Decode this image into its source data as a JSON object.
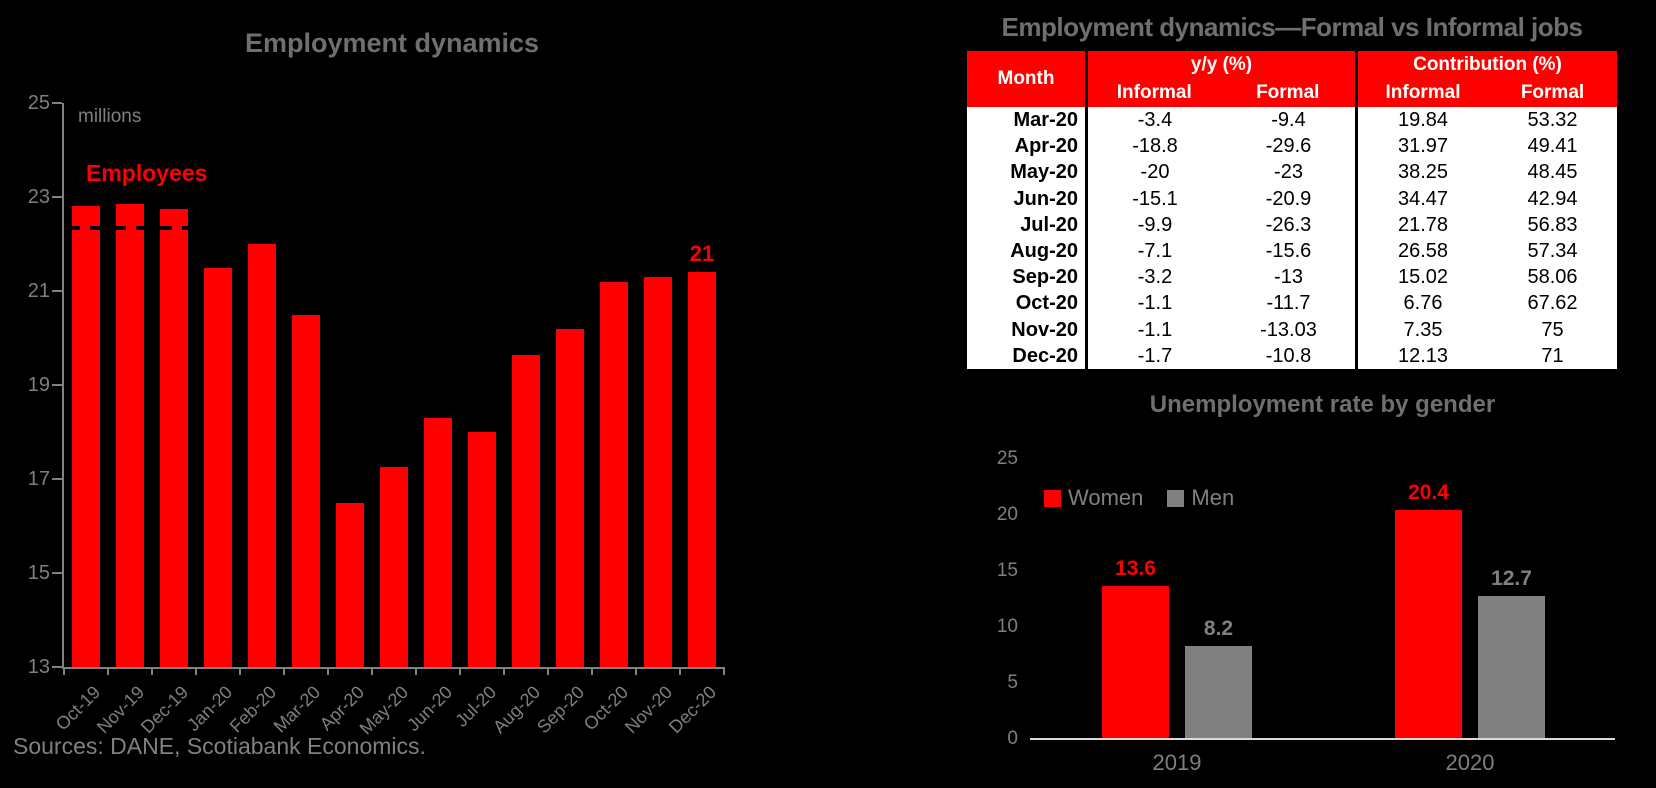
{
  "sources_note": "Sources: DANE, Scotiabank Economics.",
  "colors": {
    "accent_red": "#ff0000",
    "men_gray": "#808080",
    "title_gray": "#6f6f6f",
    "label_gray": "#7f7f7f",
    "axis_gray": "#808080",
    "light_axis": "#d9d9d9",
    "table_header_bg": "#ff0000",
    "table_body_bg": "#ffffff"
  },
  "chart_data": [
    {
      "id": "employment-dynamics",
      "type": "bar",
      "title": "Employment dynamics",
      "ylabel": "millions",
      "series_label": "Employees",
      "categories": [
        "Oct-19",
        "Nov-19",
        "Dec-19",
        "Jan-20",
        "Feb-20",
        "Mar-20",
        "Apr-20",
        "May-20",
        "Jun-20",
        "Jul-20",
        "Aug-20",
        "Sep-20",
        "Oct-20",
        "Nov-20",
        "Dec-20"
      ],
      "values": [
        22.8,
        22.85,
        22.75,
        21.5,
        22.0,
        20.5,
        16.5,
        17.25,
        18.3,
        18.0,
        19.65,
        20.2,
        21.2,
        21.3,
        21.4
      ],
      "bar_color": "#ff0000",
      "ylim": [
        13,
        25
      ],
      "y_ticks": [
        25,
        23,
        21,
        19,
        17,
        15,
        13
      ],
      "grid": false,
      "legend_position": "none",
      "reference_line": {
        "value": 22.33,
        "style": "dashed",
        "color": "#000000",
        "from_category": 0,
        "to_category": 2
      },
      "annotations": [
        {
          "text": "21",
          "category_index": 14,
          "color": "#ff0000"
        }
      ]
    },
    {
      "id": "formal-informal-table",
      "type": "table",
      "title": "Employment dynamics—Formal vs Informal jobs",
      "header": {
        "month_label": "Month",
        "groups": [
          {
            "label": "y/y (%)",
            "cols": [
              "Informal",
              "Formal"
            ]
          },
          {
            "label": "Contribution (%)",
            "cols": [
              "Informal",
              "Formal"
            ]
          }
        ]
      },
      "rows": [
        {
          "month": "Mar-20",
          "yy_informal": "-3.4",
          "yy_formal": "-9.4",
          "ctb_informal": "19.84",
          "ctb_formal": "53.32"
        },
        {
          "month": "Apr-20",
          "yy_informal": "-18.8",
          "yy_formal": "-29.6",
          "ctb_informal": "31.97",
          "ctb_formal": "49.41"
        },
        {
          "month": "May-20",
          "yy_informal": "-20",
          "yy_formal": "-23",
          "ctb_informal": "38.25",
          "ctb_formal": "48.45"
        },
        {
          "month": "Jun-20",
          "yy_informal": "-15.1",
          "yy_formal": "-20.9",
          "ctb_informal": "34.47",
          "ctb_formal": "42.94"
        },
        {
          "month": "Jul-20",
          "yy_informal": "-9.9",
          "yy_formal": "-26.3",
          "ctb_informal": "21.78",
          "ctb_formal": "56.83"
        },
        {
          "month": "Aug-20",
          "yy_informal": "-7.1",
          "yy_formal": "-15.6",
          "ctb_informal": "26.58",
          "ctb_formal": "57.34"
        },
        {
          "month": "Sep-20",
          "yy_informal": "-3.2",
          "yy_formal": "-13",
          "ctb_informal": "15.02",
          "ctb_formal": "58.06"
        },
        {
          "month": "Oct-20",
          "yy_informal": "-1.1",
          "yy_formal": "-11.7",
          "ctb_informal": "6.76",
          "ctb_formal": "67.62"
        },
        {
          "month": "Nov-20",
          "yy_informal": "-1.1",
          "yy_formal": "-13.03",
          "ctb_informal": "7.35",
          "ctb_formal": "75"
        },
        {
          "month": "Dec-20",
          "yy_informal": "-1.7",
          "yy_formal": "-10.8",
          "ctb_informal": "12.13",
          "ctb_formal": "71"
        }
      ]
    },
    {
      "id": "unemployment-by-gender",
      "type": "bar",
      "title": "Unemployment rate by gender",
      "categories": [
        "2019",
        "2020"
      ],
      "series": [
        {
          "name": "Women",
          "color": "#ff0000",
          "label_color": "#ff0000",
          "values": [
            13.6,
            20.4
          ]
        },
        {
          "name": "Men",
          "color": "#808080",
          "label_color": "#808080",
          "values": [
            8.2,
            12.7
          ]
        }
      ],
      "ylim": [
        0,
        25
      ],
      "y_ticks": [
        25,
        20,
        15,
        10,
        5,
        0
      ],
      "grid": false,
      "legend_position": "top-left"
    }
  ]
}
